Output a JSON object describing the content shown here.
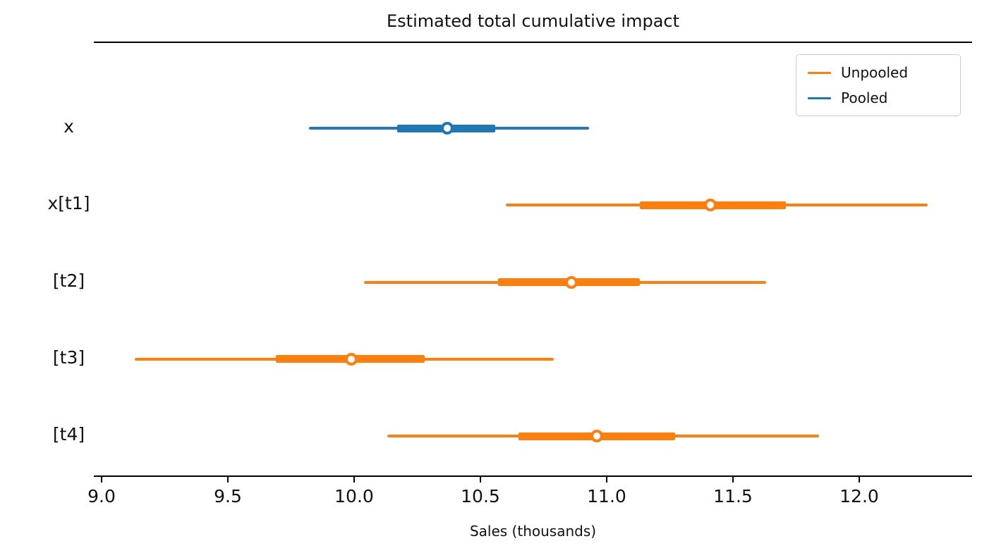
{
  "colors": {
    "unpooled": "#ff7f0e",
    "pooled": "#1f77b4",
    "marker_fill": "#ffffff",
    "axis": "#000000",
    "legend_border": "#cccccc"
  },
  "legend": {
    "items": [
      {
        "label": "Unpooled",
        "color_key": "unpooled"
      },
      {
        "label": "Pooled",
        "color_key": "pooled"
      }
    ]
  },
  "chart_data": {
    "type": "forest",
    "title": "Estimated total cumulative impact",
    "xlabel": "Sales (thousands)",
    "grid": false,
    "legend_position": "upper right",
    "x_range": [
      8.97,
      12.45
    ],
    "x_ticks": [
      {
        "value": 9.0,
        "label": "9.0"
      },
      {
        "value": 9.5,
        "label": "9.5"
      },
      {
        "value": 10.0,
        "label": "10.0"
      },
      {
        "value": 10.5,
        "label": "10.5"
      },
      {
        "value": 11.0,
        "label": "11.0"
      },
      {
        "value": 11.5,
        "label": "11.5"
      },
      {
        "value": 12.0,
        "label": "12.0"
      }
    ],
    "rows": [
      {
        "label": "x",
        "series": "Pooled",
        "color_key": "pooled",
        "hdi": [
          9.82,
          10.93
        ],
        "interquartile": [
          10.17,
          10.56
        ],
        "mean": 10.37
      },
      {
        "label": "x[t1]",
        "series": "Unpooled",
        "color_key": "unpooled",
        "hdi": [
          10.6,
          12.27
        ],
        "interquartile": [
          11.13,
          11.71
        ],
        "mean": 11.41
      },
      {
        "label": "[t2]",
        "series": "Unpooled",
        "color_key": "unpooled",
        "hdi": [
          10.04,
          11.63
        ],
        "interquartile": [
          10.57,
          11.13
        ],
        "mean": 10.86
      },
      {
        "label": "[t3]",
        "series": "Unpooled",
        "color_key": "unpooled",
        "hdi": [
          9.13,
          10.79
        ],
        "interquartile": [
          9.69,
          10.28
        ],
        "mean": 9.99
      },
      {
        "label": "[t4]",
        "series": "Unpooled",
        "color_key": "unpooled",
        "hdi": [
          10.13,
          11.84
        ],
        "interquartile": [
          10.65,
          11.27
        ],
        "mean": 10.96
      }
    ]
  }
}
